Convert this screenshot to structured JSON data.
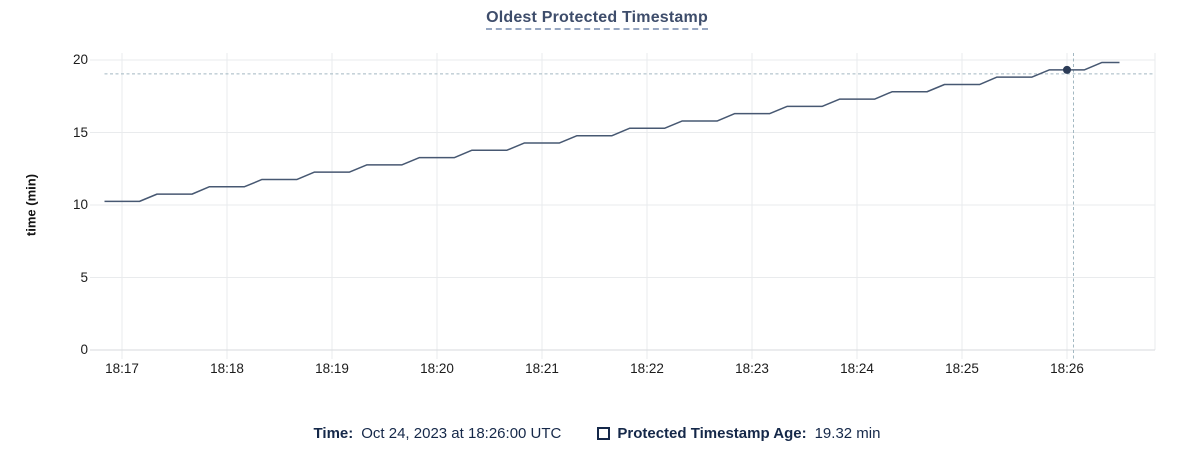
{
  "title": "Oldest Protected Timestamp",
  "chart_data": {
    "type": "line",
    "title": "Oldest Protected Timestamp",
    "xlabel": "",
    "ylabel": "time (min)",
    "ylim": [
      0,
      20
    ],
    "yticks": [
      0,
      5,
      10,
      15,
      20
    ],
    "xticks": [
      "18:17",
      "18:18",
      "18:19",
      "18:20",
      "18:21",
      "18:22",
      "18:23",
      "18:24",
      "18:25",
      "18:26"
    ],
    "grid": true,
    "legend_position": "bottom",
    "series": [
      {
        "name": "Protected Timestamp Age",
        "points": [
          [
            "18:16:50",
            10.25
          ],
          [
            "18:17:10",
            10.25
          ],
          [
            "18:17:20",
            10.75
          ],
          [
            "18:17:40",
            10.75
          ],
          [
            "18:17:50",
            11.26
          ],
          [
            "18:18:10",
            11.26
          ],
          [
            "18:18:20",
            11.76
          ],
          [
            "18:18:40",
            11.76
          ],
          [
            "18:18:50",
            12.27
          ],
          [
            "18:19:10",
            12.27
          ],
          [
            "18:19:20",
            12.77
          ],
          [
            "18:19:40",
            12.77
          ],
          [
            "18:19:50",
            13.27
          ],
          [
            "18:20:10",
            13.27
          ],
          [
            "18:20:20",
            13.78
          ],
          [
            "18:20:40",
            13.78
          ],
          [
            "18:20:50",
            14.28
          ],
          [
            "18:21:10",
            14.28
          ],
          [
            "18:21:20",
            14.78
          ],
          [
            "18:21:40",
            14.78
          ],
          [
            "18:21:50",
            15.29
          ],
          [
            "18:22:10",
            15.29
          ],
          [
            "18:22:20",
            15.79
          ],
          [
            "18:22:40",
            15.79
          ],
          [
            "18:22:50",
            16.3
          ],
          [
            "18:23:10",
            16.3
          ],
          [
            "18:23:20",
            16.8
          ],
          [
            "18:23:40",
            16.8
          ],
          [
            "18:23:50",
            17.3
          ],
          [
            "18:24:10",
            17.3
          ],
          [
            "18:24:20",
            17.81
          ],
          [
            "18:24:40",
            17.81
          ],
          [
            "18:24:50",
            18.31
          ],
          [
            "18:25:10",
            18.31
          ],
          [
            "18:25:20",
            18.82
          ],
          [
            "18:25:40",
            18.82
          ],
          [
            "18:25:50",
            19.32
          ],
          [
            "18:26:10",
            19.32
          ],
          [
            "18:26:20",
            19.83
          ],
          [
            "18:26:30",
            19.83
          ]
        ]
      }
    ],
    "hover": {
      "t": "18:26:00",
      "value": 19.32
    }
  },
  "legend": {
    "time_label": "Time:",
    "time_value": "Oct 24, 2023 at 18:26:00 UTC",
    "series_label": "Protected Timestamp Age:",
    "series_value": "19.32 min"
  },
  "icons": {
    "series_swatch": "checkbox-outline-icon"
  },
  "colors": {
    "title": "#3e4d6b",
    "title_underline": "#97a7c2",
    "line": "#475872",
    "dot": "#2b3b57",
    "crosshair": "#a3b8c2",
    "gridline": "#e9ebed",
    "axis_line": "#d7dadd",
    "tick_text": "#1c1c1c",
    "legend_text": "#152849"
  }
}
